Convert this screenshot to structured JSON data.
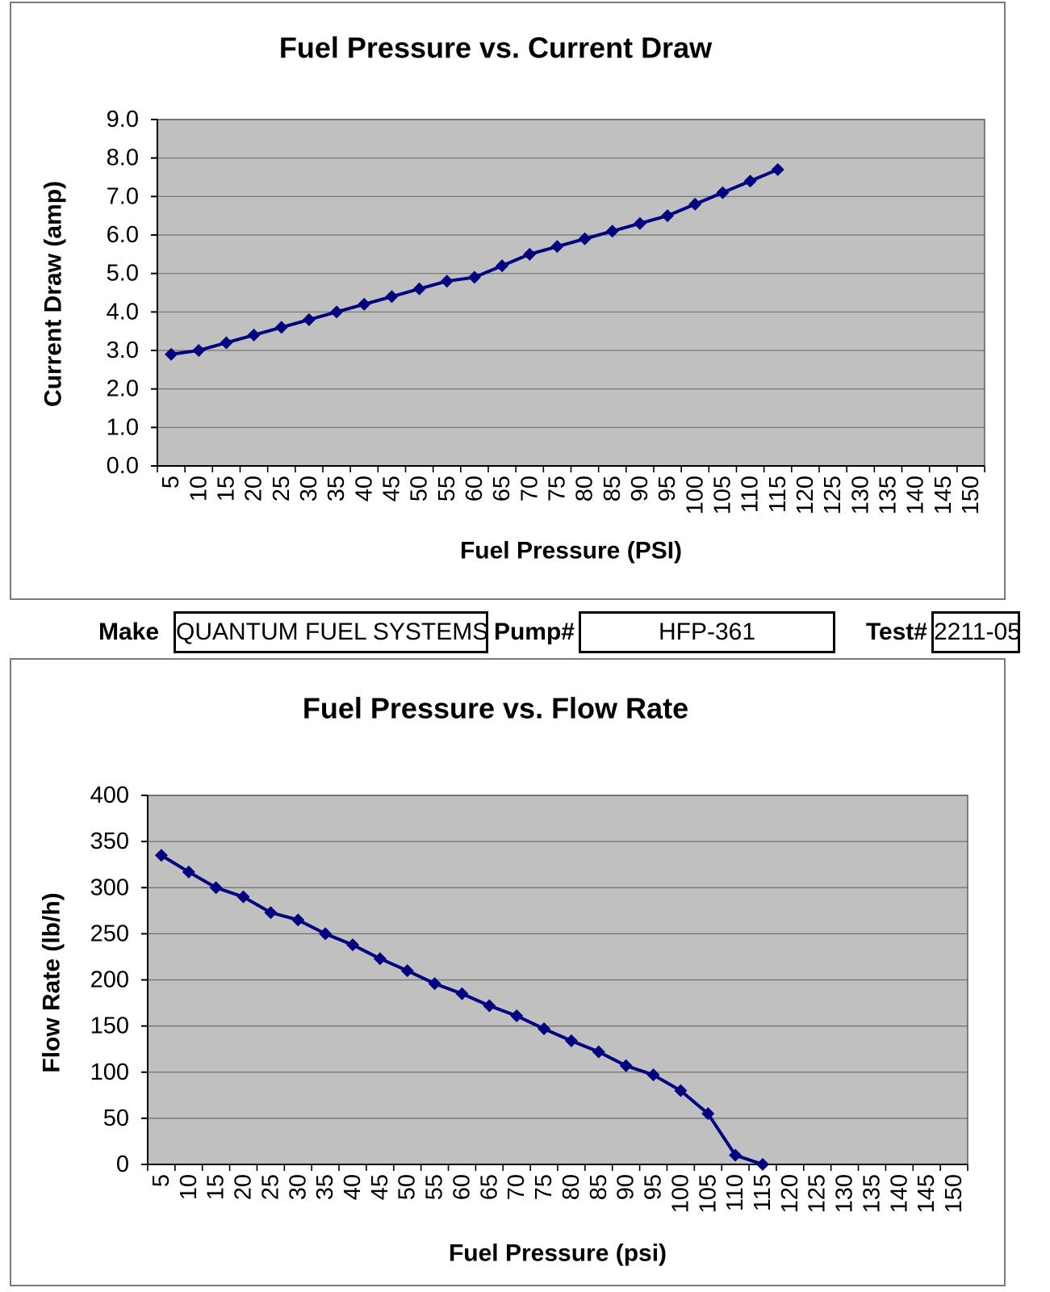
{
  "fields": {
    "make_label": "Make",
    "make_value": "QUANTUM FUEL SYSTEMS",
    "pump_label": "Pump#",
    "pump_value": "HFP-361",
    "test_label": "Test#",
    "test_value": "2211-05"
  },
  "colors": {
    "series_line": "#000080",
    "plot_background": "#c0c0c0",
    "gridline": "#6f6f6f",
    "axis": "#000000",
    "panel_border": "#7b7b7b",
    "field_border": "#000000"
  },
  "chart_data": [
    {
      "type": "line",
      "title": "Fuel Pressure vs. Current Draw",
      "xlabel": "Fuel Pressure (PSI)",
      "ylabel": "Current Draw (amp)",
      "categories": [
        5,
        10,
        15,
        20,
        25,
        30,
        35,
        40,
        45,
        50,
        55,
        60,
        65,
        70,
        75,
        80,
        85,
        90,
        95,
        100,
        105,
        110,
        115,
        120,
        125,
        130,
        135,
        140,
        145,
        150
      ],
      "x": [
        5,
        10,
        15,
        20,
        25,
        30,
        35,
        40,
        45,
        50,
        55,
        60,
        65,
        70,
        75,
        80,
        85,
        90,
        95,
        100,
        105,
        110,
        115
      ],
      "values": [
        2.9,
        3.0,
        3.2,
        3.4,
        3.6,
        3.8,
        4.0,
        4.2,
        4.4,
        4.6,
        4.8,
        4.9,
        5.2,
        5.5,
        5.7,
        5.9,
        6.1,
        6.3,
        6.5,
        6.8,
        7.1,
        7.4,
        7.7
      ],
      "ylim": [
        0,
        9
      ],
      "y_tick_labels": [
        "0.0",
        "1.0",
        "2.0",
        "3.0",
        "4.0",
        "5.0",
        "6.0",
        "7.0",
        "8.0",
        "9.0"
      ],
      "grid": true,
      "legend": null,
      "marker": "diamond"
    },
    {
      "type": "line",
      "title": "Fuel Pressure vs. Flow Rate",
      "xlabel": "Fuel Pressure (psi)",
      "ylabel": "Flow Rate (lb/h)",
      "categories": [
        5,
        10,
        15,
        20,
        25,
        30,
        35,
        40,
        45,
        50,
        55,
        60,
        65,
        70,
        75,
        80,
        85,
        90,
        95,
        100,
        105,
        110,
        115,
        120,
        125,
        130,
        135,
        140,
        145,
        150
      ],
      "x": [
        5,
        10,
        15,
        20,
        25,
        30,
        35,
        40,
        45,
        50,
        55,
        60,
        65,
        70,
        75,
        80,
        85,
        90,
        95,
        100,
        105,
        110,
        115
      ],
      "values": [
        335,
        317,
        300,
        290,
        273,
        265,
        250,
        238,
        223,
        210,
        196,
        185,
        172,
        161,
        147,
        134,
        122,
        107,
        97,
        80,
        55,
        10,
        0
      ],
      "ylim": [
        0,
        400
      ],
      "y_tick_labels": [
        "0",
        "50",
        "100",
        "150",
        "200",
        "250",
        "300",
        "350",
        "400"
      ],
      "grid": true,
      "legend": null,
      "marker": "diamond"
    }
  ]
}
